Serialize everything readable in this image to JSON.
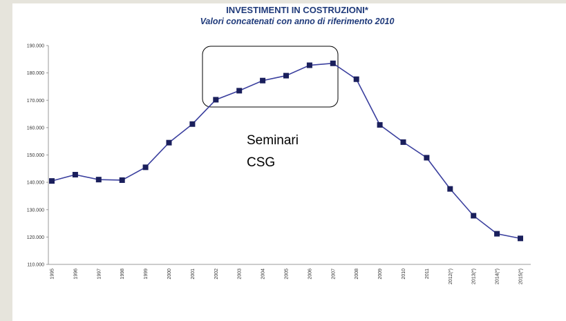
{
  "chart_data": {
    "type": "line",
    "title": "INVESTIMENTI IN COSTRUZIONI*",
    "subtitle": "Valori concatenati con anno di riferimento 2010",
    "categories": [
      "1995",
      "1996",
      "1997",
      "1998",
      "1999",
      "2000",
      "2001",
      "2002",
      "2003",
      "2004",
      "2005",
      "2006",
      "2007",
      "2008",
      "2009",
      "2010",
      "2011",
      "2012(*)",
      "2013(*)",
      "2014(*)",
      "2015(*)"
    ],
    "series": [
      {
        "name": "Investimenti in costruzioni",
        "color": "#3a3f9e",
        "marker_color": "#1a1f5c",
        "values": [
          140500,
          142800,
          141000,
          140800,
          145500,
          154500,
          161300,
          170200,
          173500,
          177200,
          179000,
          182800,
          183500,
          177700,
          161000,
          154700,
          149000,
          137600,
          127800,
          121200,
          119500
        ]
      }
    ],
    "ylim": [
      110000,
      190000
    ],
    "yticks": [
      {
        "value": 110000,
        "label": "110.000"
      },
      {
        "value": 120000,
        "label": "120.000"
      },
      {
        "value": 130000,
        "label": "130.000"
      },
      {
        "value": 140000,
        "label": "140.000"
      },
      {
        "value": 150000,
        "label": "150.000"
      },
      {
        "value": 160000,
        "label": "160.000"
      },
      {
        "value": 170000,
        "label": "170.000"
      },
      {
        "value": 180000,
        "label": "180.000"
      },
      {
        "value": 190000,
        "label": "190.000"
      }
    ],
    "grid": false,
    "annotation": [
      "Seminari",
      "CSG"
    ]
  }
}
